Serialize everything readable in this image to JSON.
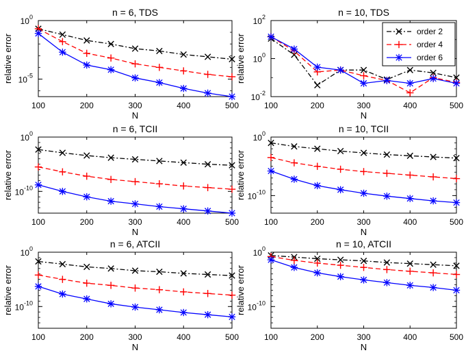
{
  "chart_data": {
    "type": "line",
    "layout": "3x2 grid of log-scale line plots",
    "legend": {
      "placement": "top-right of the n = 10, TDS panel",
      "entries": [
        {
          "name": "order 2",
          "color": "#000000",
          "dash": "dash-dot",
          "marker": "x"
        },
        {
          "name": "order 4",
          "color": "#ff0000",
          "dash": "dashed",
          "marker": "+"
        },
        {
          "name": "order 6",
          "color": "#0000ff",
          "dash": "solid",
          "marker": "*"
        }
      ]
    },
    "charts": [
      {
        "title": "n = 6, TDS",
        "xlabel": "N",
        "ylabel": "relative error",
        "yscale": "log",
        "xlim": [
          100,
          500
        ],
        "ylim_exp": [
          -6.5,
          0
        ],
        "xticks": [
          100,
          200,
          300,
          400,
          500
        ],
        "yticks": [
          {
            "base": "10",
            "exp": "0",
            "value_exp": 0
          },
          {
            "base": "10",
            "exp": "-5",
            "value_exp": -5
          }
        ],
        "x": [
          100,
          150,
          200,
          250,
          300,
          350,
          400,
          450,
          500
        ],
        "series": [
          {
            "name": "order 2",
            "log10_values": [
              -0.7,
              -1.2,
              -1.7,
              -2.0,
              -2.4,
              -2.6,
              -2.9,
              -3.1,
              -3.3
            ]
          },
          {
            "name": "order 4",
            "log10_values": [
              -0.7,
              -1.8,
              -2.8,
              -3.2,
              -3.7,
              -4.0,
              -4.3,
              -4.6,
              -4.8
            ]
          },
          {
            "name": "order 6",
            "log10_values": [
              -1.1,
              -2.7,
              -3.8,
              -4.2,
              -4.9,
              -5.3,
              -5.8,
              -6.2,
              -6.5
            ]
          }
        ]
      },
      {
        "title": "n = 10, TDS",
        "xlabel": "N",
        "ylabel": "relative error",
        "yscale": "log",
        "xlim": [
          100,
          500
        ],
        "ylim_exp": [
          -2,
          2
        ],
        "xticks": [
          100,
          200,
          300,
          400,
          500
        ],
        "yticks": [
          {
            "base": "10",
            "exp": "2",
            "value_exp": 2
          },
          {
            "base": "10",
            "exp": "0",
            "value_exp": 0
          },
          {
            "base": "10",
            "exp": "-2",
            "value_exp": -2
          }
        ],
        "x": [
          100,
          150,
          200,
          250,
          300,
          350,
          400,
          450,
          500
        ],
        "series": [
          {
            "name": "order 2",
            "log10_values": [
              1.05,
              0.2,
              -1.4,
              -0.6,
              -0.6,
              -1.1,
              -0.6,
              -0.75,
              -1.0
            ]
          },
          {
            "name": "order 4",
            "log10_values": [
              1.15,
              0.4,
              -0.7,
              -0.6,
              -0.9,
              -1.15,
              -1.8,
              -1.0,
              -1.25
            ]
          },
          {
            "name": "order 6",
            "log10_values": [
              1.15,
              0.5,
              -0.45,
              -0.6,
              -1.3,
              -1.15,
              -1.3,
              -1.05,
              -1.3
            ]
          }
        ]
      },
      {
        "title": "n = 6, TCII",
        "xlabel": "N",
        "ylabel": "relative error",
        "yscale": "log",
        "xlim": [
          100,
          500
        ],
        "ylim_exp": [
          -14,
          0
        ],
        "xticks": [
          100,
          200,
          300,
          400,
          500
        ],
        "yticks": [
          {
            "base": "10",
            "exp": "0",
            "value_exp": 0
          },
          {
            "base": "10",
            "exp": "-10",
            "value_exp": -10
          }
        ],
        "x": [
          100,
          150,
          200,
          250,
          300,
          350,
          400,
          450,
          500
        ],
        "series": [
          {
            "name": "order 2",
            "log10_values": [
              -2.3,
              -2.9,
              -3.4,
              -3.8,
              -4.1,
              -4.4,
              -4.7,
              -5.0,
              -5.2
            ]
          },
          {
            "name": "order 4",
            "log10_values": [
              -5.5,
              -6.4,
              -7.2,
              -7.8,
              -8.2,
              -8.6,
              -9.0,
              -9.3,
              -9.6
            ]
          },
          {
            "name": "order 6",
            "log10_values": [
              -8.8,
              -10.0,
              -11.0,
              -11.8,
              -12.3,
              -12.8,
              -13.2,
              -13.6,
              -14.0
            ]
          }
        ]
      },
      {
        "title": "n = 10, TCII",
        "xlabel": "N",
        "ylabel": "relative error",
        "yscale": "log",
        "xlim": [
          100,
          500
        ],
        "ylim_exp": [
          -13,
          0
        ],
        "xticks": [
          100,
          200,
          300,
          400,
          500
        ],
        "yticks": [
          {
            "base": "10",
            "exp": "0",
            "value_exp": 0
          },
          {
            "base": "10",
            "exp": "-10",
            "value_exp": -10
          }
        ],
        "x": [
          100,
          150,
          200,
          250,
          300,
          350,
          400,
          450,
          500
        ],
        "series": [
          {
            "name": "order 2",
            "log10_values": [
              -1.0,
              -1.6,
              -2.0,
              -2.4,
              -2.7,
              -3.0,
              -3.2,
              -3.4,
              -3.6
            ]
          },
          {
            "name": "order 4",
            "log10_values": [
              -3.5,
              -4.4,
              -5.0,
              -5.5,
              -5.9,
              -6.2,
              -6.5,
              -6.8,
              -7.1
            ]
          },
          {
            "name": "order 6",
            "log10_values": [
              -5.8,
              -7.2,
              -8.3,
              -9.0,
              -9.6,
              -10.1,
              -10.5,
              -10.9,
              -11.2
            ]
          }
        ]
      },
      {
        "title": "n = 6, ATCII",
        "xlabel": "N",
        "ylabel": "relative error",
        "yscale": "log",
        "xlim": [
          100,
          500
        ],
        "ylim_exp": [
          -14,
          0
        ],
        "xticks": [
          100,
          200,
          300,
          400,
          500
        ],
        "yticks": [
          {
            "base": "10",
            "exp": "0",
            "value_exp": 0
          },
          {
            "base": "10",
            "exp": "-10",
            "value_exp": -10
          }
        ],
        "x": [
          100,
          150,
          200,
          250,
          300,
          350,
          400,
          450,
          500
        ],
        "series": [
          {
            "name": "order 2",
            "log10_values": [
              -1.7,
              -2.2,
              -2.7,
              -3.0,
              -3.4,
              -3.6,
              -3.9,
              -4.1,
              -4.3
            ]
          },
          {
            "name": "order 4",
            "log10_values": [
              -4.2,
              -5.0,
              -5.7,
              -6.1,
              -6.6,
              -6.9,
              -7.3,
              -7.6,
              -7.9
            ]
          },
          {
            "name": "order 6",
            "log10_values": [
              -6.3,
              -7.7,
              -8.6,
              -9.5,
              -10.1,
              -10.6,
              -11.1,
              -11.5,
              -11.9
            ]
          }
        ]
      },
      {
        "title": "n = 10, ATCII",
        "xlabel": "N",
        "ylabel": "relative error",
        "yscale": "log",
        "xlim": [
          100,
          500
        ],
        "ylim_exp": [
          -14,
          0
        ],
        "xticks": [
          100,
          200,
          300,
          400,
          500
        ],
        "yticks": [
          {
            "base": "10",
            "exp": "0",
            "value_exp": 0
          },
          {
            "base": "10",
            "exp": "-10",
            "value_exp": -10
          }
        ],
        "x": [
          100,
          150,
          200,
          250,
          300,
          350,
          400,
          450,
          500
        ],
        "series": [
          {
            "name": "order 2",
            "log10_values": [
              -0.6,
              -0.9,
              -1.2,
              -1.4,
              -1.6,
              -1.9,
              -2.1,
              -2.3,
              -2.5
            ]
          },
          {
            "name": "order 4",
            "log10_values": [
              -0.8,
              -1.5,
              -2.0,
              -2.4,
              -2.8,
              -3.2,
              -3.5,
              -3.8,
              -4.1
            ]
          },
          {
            "name": "order 6",
            "log10_values": [
              -1.4,
              -2.8,
              -3.8,
              -4.5,
              -5.1,
              -5.6,
              -6.1,
              -6.5,
              -7.0
            ]
          }
        ]
      }
    ]
  }
}
